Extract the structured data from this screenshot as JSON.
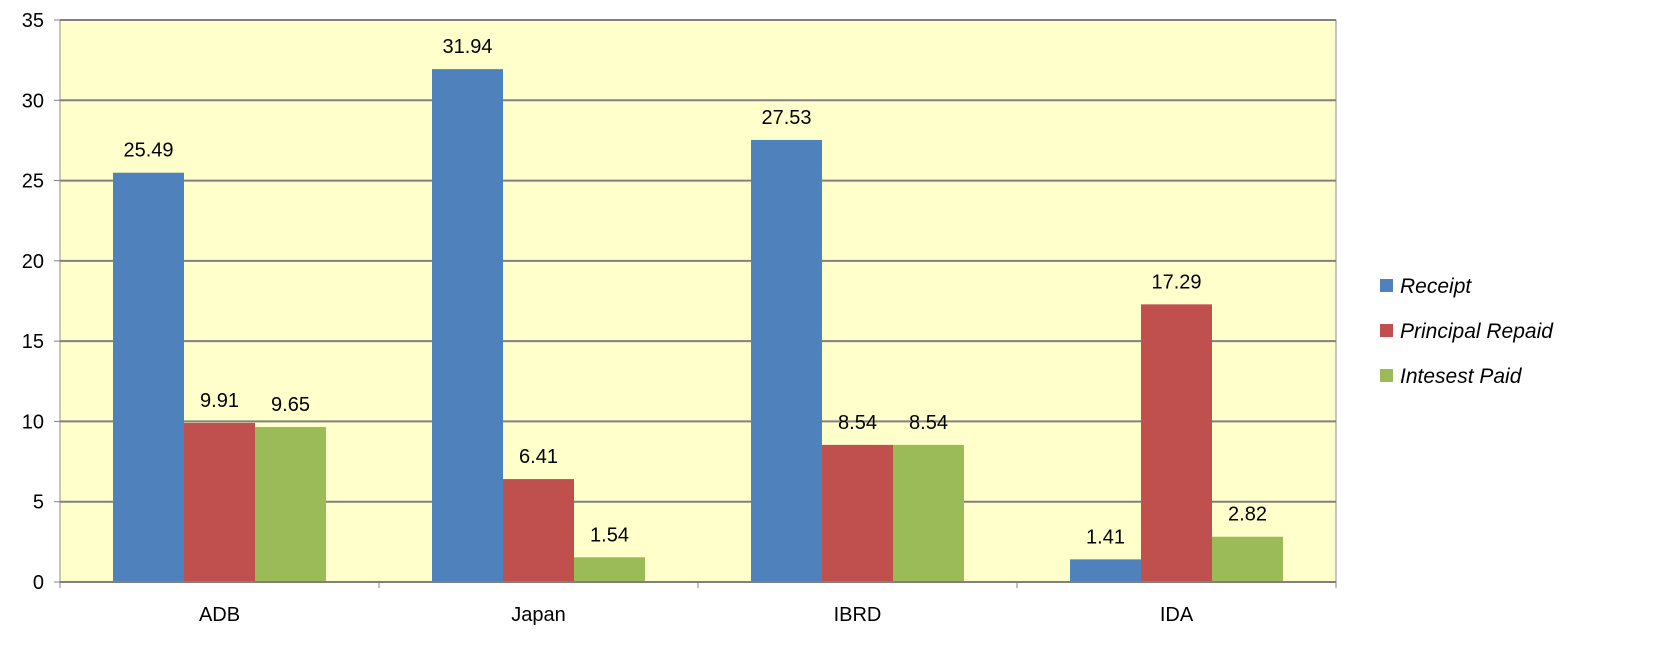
{
  "chart_data": {
    "type": "bar",
    "title": "",
    "xlabel": "",
    "ylabel": "",
    "categories": [
      "ADB",
      "Japan",
      "IBRD",
      "IDA"
    ],
    "series": [
      {
        "name": "Receipt",
        "color": "#4f81bd",
        "values": [
          25.49,
          31.94,
          27.53,
          1.41
        ]
      },
      {
        "name": "Principal Repaid",
        "color": "#c0504d",
        "values": [
          9.91,
          6.41,
          8.54,
          17.29
        ]
      },
      {
        "name": "Intesest Paid",
        "color": "#9bbb59",
        "values": [
          9.65,
          1.54,
          8.54,
          2.82
        ]
      }
    ],
    "ylim": [
      0,
      35
    ],
    "yticks": [
      0,
      5,
      10,
      15,
      20,
      25,
      30,
      35
    ],
    "grid": true,
    "plot_background": "#ffffcc",
    "legend_position": "right",
    "data_labels": true
  }
}
